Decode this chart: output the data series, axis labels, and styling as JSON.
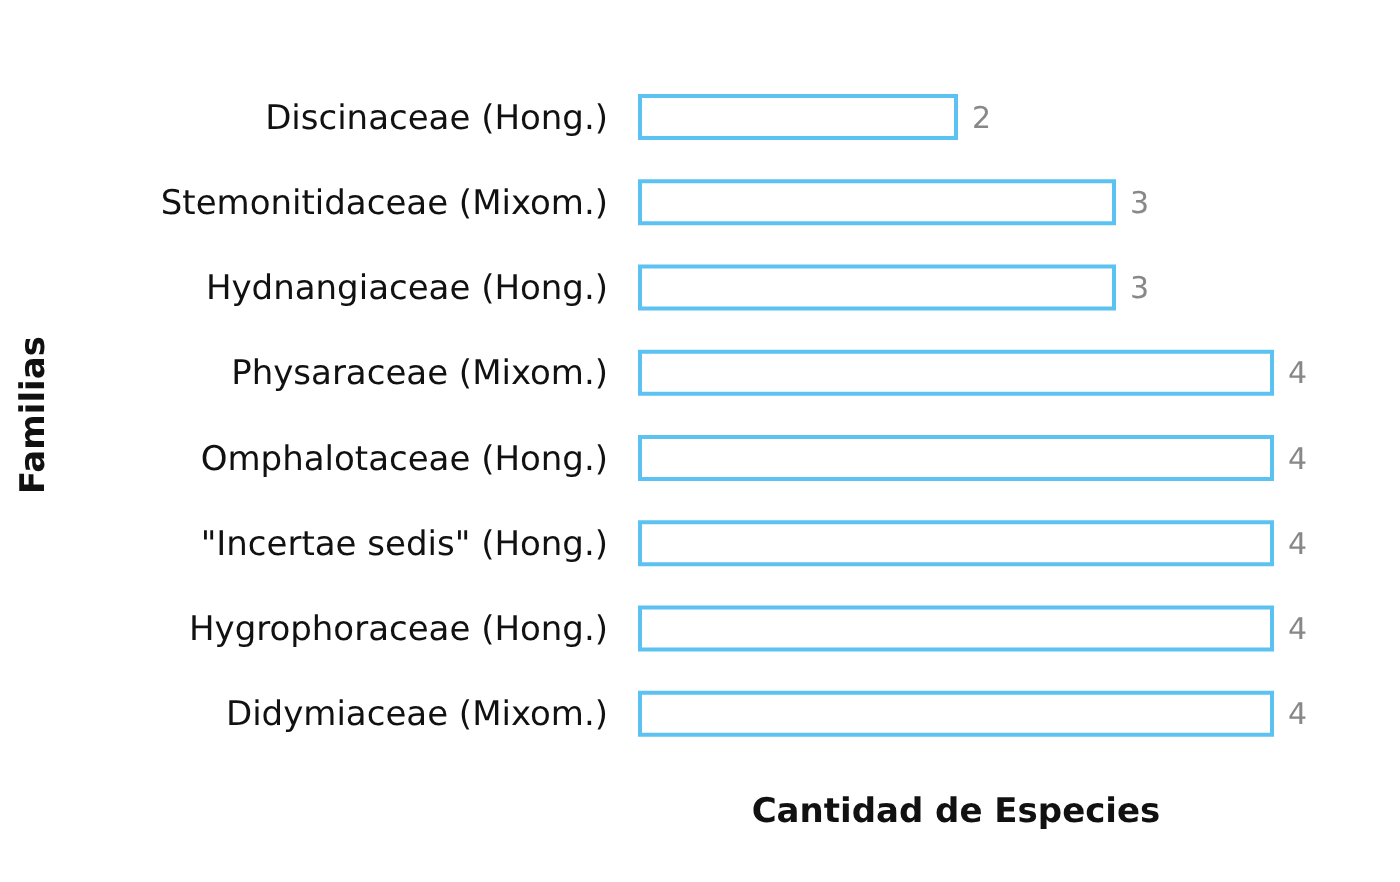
{
  "chart_data": {
    "type": "bar",
    "orientation": "horizontal",
    "xlabel": "Cantidad de Especies",
    "ylabel": "Familias",
    "categories": [
      "Discinaceae (Hong.)",
      "Stemonitidaceae (Mixom.)",
      "Hydnangiaceae (Hong.)",
      "Physaraceae (Mixom.)",
      "Omphalotaceae (Hong.)",
      "\"Incertae sedis\" (Hong.)",
      "Hygrophoraceae (Hong.)",
      "Didymiaceae (Mixom.)"
    ],
    "values": [
      2,
      3,
      3,
      4,
      4,
      4,
      4,
      4
    ],
    "color": "#5cc2f2",
    "data_labels": true
  }
}
